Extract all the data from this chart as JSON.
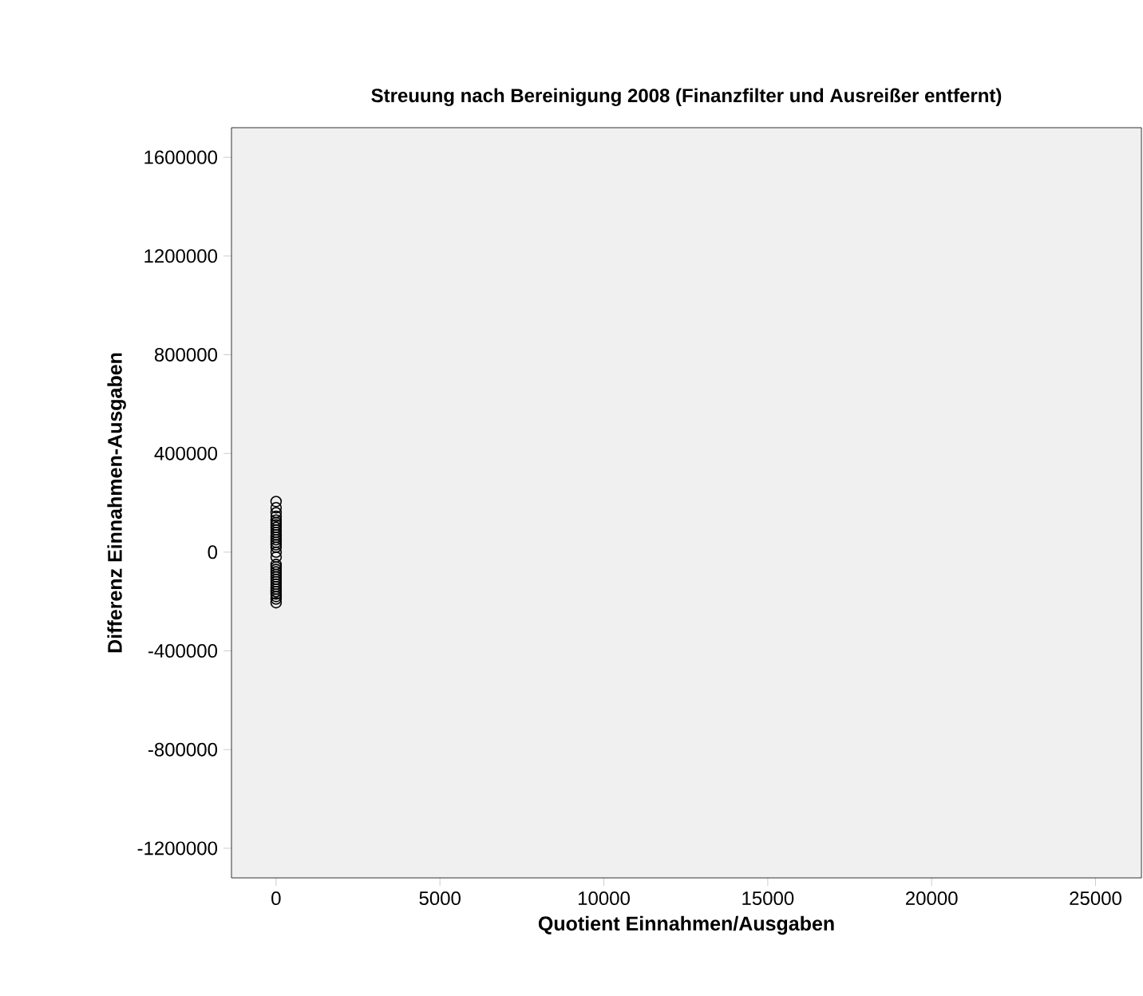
{
  "chart_data": {
    "type": "scatter",
    "title": "Streuung nach Bereinigung 2008 (Finanzfilter und Ausreißer entfernt)",
    "xlabel": "Quotient Einnahmen/Ausgaben",
    "ylabel": "Differenz Einnahmen-Ausgaben",
    "xlim": [
      -1360,
      26400
    ],
    "ylim": [
      -1320000,
      1720000
    ],
    "xticks": [
      0,
      5000,
      10000,
      15000,
      20000,
      25000
    ],
    "yticks": [
      -1200000,
      -800000,
      -400000,
      0,
      400000,
      800000,
      1200000,
      1600000
    ],
    "marker": "circle",
    "grid": false,
    "series": [
      {
        "color": "#000000",
        "x": [
          1,
          2,
          1,
          3,
          1,
          2,
          1,
          1,
          2,
          1,
          3,
          1,
          2,
          1,
          1,
          2,
          2,
          3,
          1,
          2,
          1,
          1,
          2,
          1,
          1,
          2,
          1,
          1,
          2,
          1,
          1,
          3,
          1,
          1
        ],
        "values": [
          205000,
          180000,
          160000,
          145000,
          130000,
          120000,
          110000,
          100000,
          90000,
          80000,
          70000,
          60000,
          50000,
          40000,
          30000,
          20000,
          0,
          -20000,
          -50000,
          -60000,
          -70000,
          -80000,
          -90000,
          -100000,
          -110000,
          -120000,
          -130000,
          -140000,
          -150000,
          -160000,
          -170000,
          -180000,
          -190000,
          -205000
        ]
      }
    ]
  }
}
